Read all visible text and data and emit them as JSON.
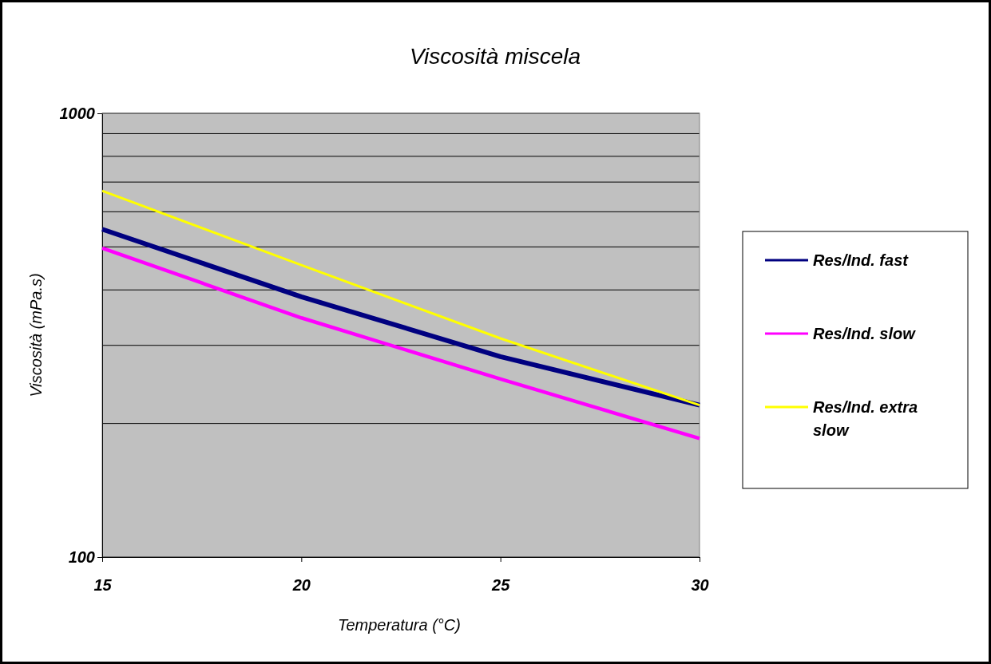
{
  "chart_data": {
    "type": "line",
    "title": "Viscosità miscela",
    "xlabel": "Temperatura (°C)",
    "ylabel": "Viscosità (mPa.s)",
    "x": [
      15,
      20,
      25,
      30
    ],
    "series": [
      {
        "name": "Res/Ind. fast",
        "color": "#000080",
        "values": [
          548,
          386,
          283,
          220
        ]
      },
      {
        "name": "Res/Ind. slow",
        "color": "#ff00ff",
        "values": [
          497,
          346,
          252,
          185
        ]
      },
      {
        "name": "Res/Ind. extra slow",
        "color": "#ffff00",
        "values": [
          669,
          455,
          311,
          220
        ]
      }
    ],
    "xlim": [
      15,
      30
    ],
    "xticks": [
      15,
      20,
      25,
      30
    ],
    "ylim": [
      100,
      1000
    ],
    "yticks": [
      100,
      {
        "value": 200,
        "label": null
      },
      {
        "value": 300,
        "label": null
      },
      {
        "value": 400,
        "label": null
      },
      {
        "value": 500,
        "label": null
      },
      {
        "value": 600,
        "label": null
      },
      {
        "value": 700,
        "label": null
      },
      {
        "value": 800,
        "label": null
      },
      {
        "value": 900,
        "label": null
      },
      1000
    ],
    "log": true,
    "grid": "y",
    "legend": "right",
    "marker": "none",
    "line_style": "solid"
  }
}
